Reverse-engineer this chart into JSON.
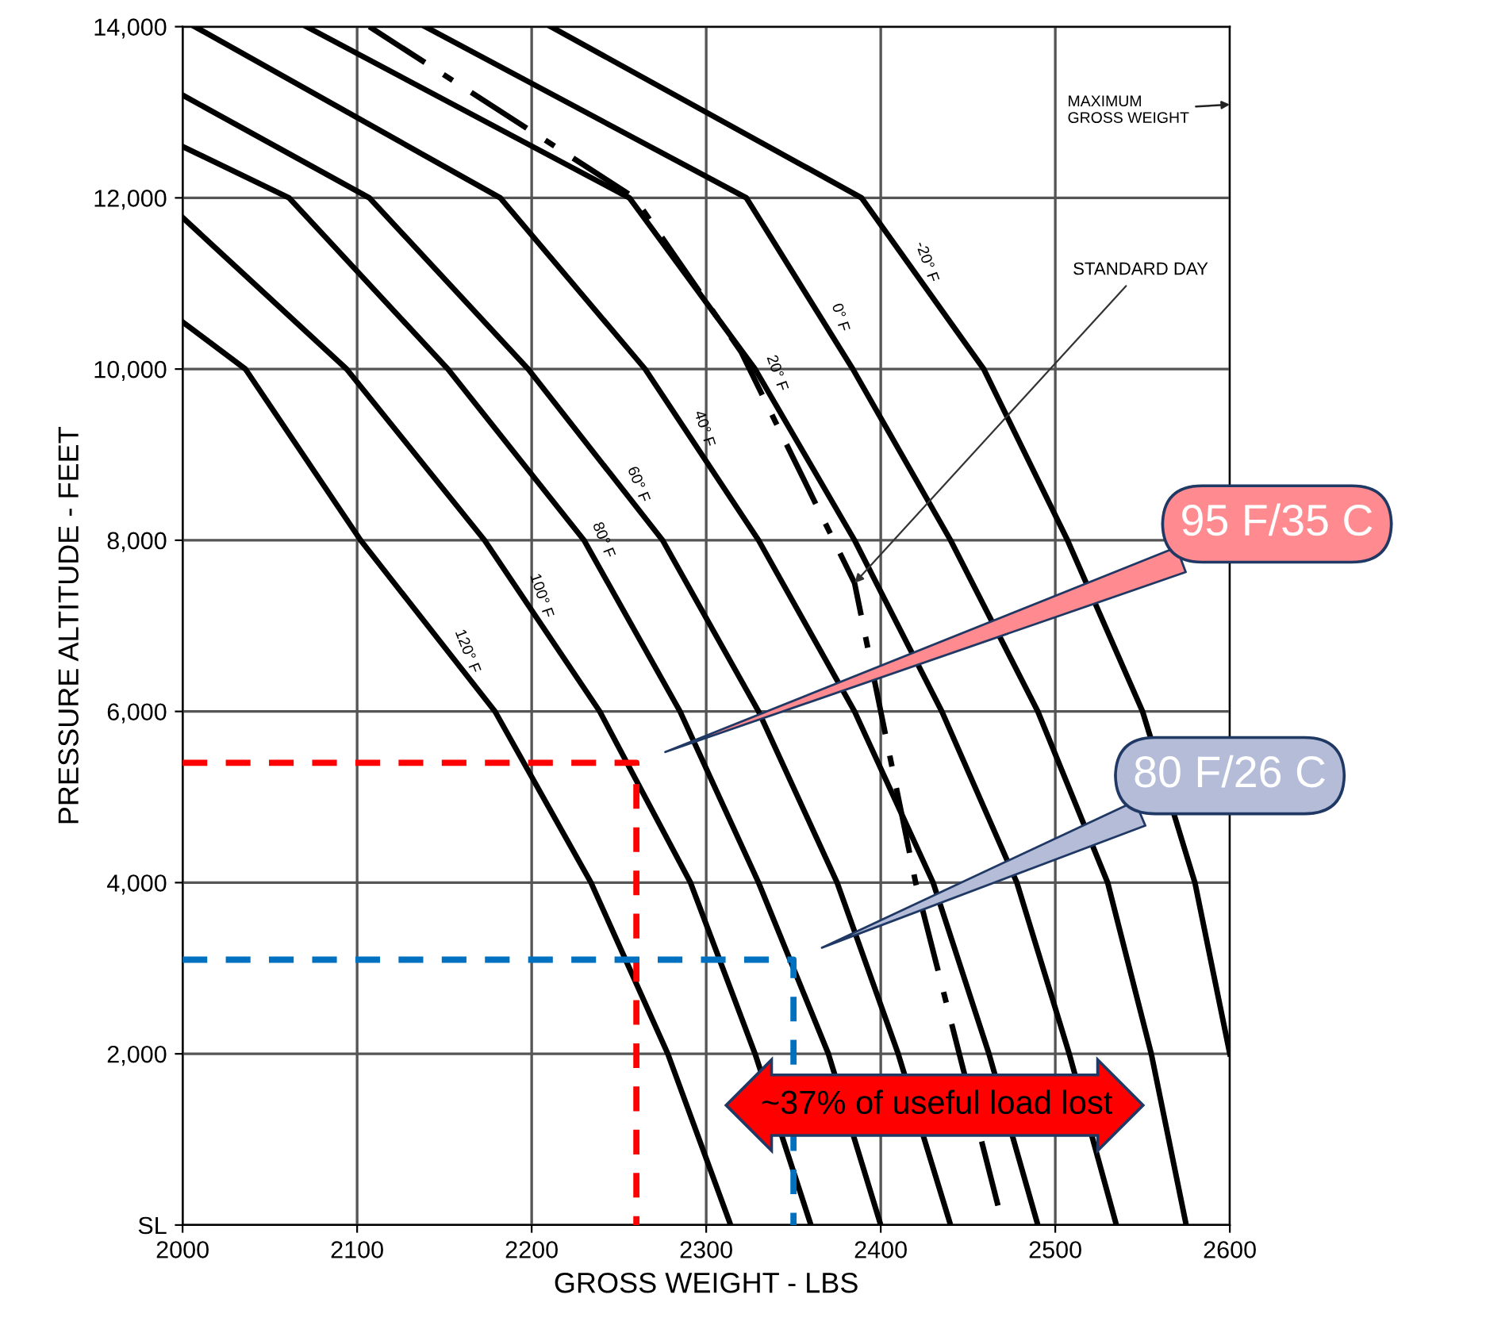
{
  "chart_data": {
    "type": "line",
    "xlabel": "GROSS WEIGHT - LBS",
    "ylabel": "PRESSURE ALTITUDE - FEET",
    "xlim": [
      2000,
      2600
    ],
    "xticks": [
      2000,
      2100,
      2200,
      2300,
      2400,
      2500,
      2600
    ],
    "ylim": [
      0,
      14000
    ],
    "yticks": [
      {
        "value": 0,
        "label": "SL"
      },
      {
        "value": 2000,
        "label": "2,000"
      },
      {
        "value": 4000,
        "label": "4,000"
      },
      {
        "value": 6000,
        "label": "6,000"
      },
      {
        "value": 8000,
        "label": "8,000"
      },
      {
        "value": 10000,
        "label": "10,000"
      },
      {
        "value": 12000,
        "label": "12,000"
      },
      {
        "value": 14000,
        "label": "14,000"
      }
    ],
    "grid": true,
    "legend": false,
    "marker": "none",
    "series": [
      {
        "name": "120° F",
        "color": "#000000",
        "line_style": "solid",
        "x": [
          2000,
          2036,
          2102,
          2179,
          2234,
          2278,
          2314
        ],
        "values": [
          10550,
          10000,
          8000,
          6000,
          4000,
          2000,
          0
        ]
      },
      {
        "name": "100° F",
        "color": "#000000",
        "line_style": "solid",
        "x": [
          2000,
          2094,
          2173,
          2239,
          2291,
          2328,
          2360
        ],
        "values": [
          11770,
          10000,
          8000,
          6000,
          4000,
          2000,
          0
        ]
      },
      {
        "name": "80° F",
        "color": "#000000",
        "line_style": "solid",
        "x": [
          2000,
          2061,
          2152,
          2230,
          2285,
          2330,
          2370,
          2400
        ],
        "values": [
          12600,
          12000,
          10000,
          8000,
          6000,
          4000,
          2000,
          0
        ]
      },
      {
        "name": "60° F",
        "color": "#000000",
        "line_style": "solid",
        "x": [
          2000,
          2107,
          2198,
          2275,
          2330,
          2375,
          2410,
          2440
        ],
        "values": [
          13200,
          12000,
          10000,
          8000,
          6000,
          4000,
          2000,
          0
        ]
      },
      {
        "name": "40° F",
        "color": "#000000",
        "line_style": "solid",
        "x": [
          2007,
          2182,
          2265,
          2330,
          2385,
          2430,
          2462,
          2490
        ],
        "values": [
          14000,
          12000,
          10000,
          8000,
          6000,
          4000,
          2000,
          0
        ]
      },
      {
        "name": "20° F",
        "color": "#000000",
        "line_style": "solid",
        "x": [
          2071,
          2256,
          2328,
          2385,
          2435,
          2478,
          2508,
          2535
        ],
        "values": [
          14000,
          12000,
          10000,
          8000,
          6000,
          4000,
          2000,
          0
        ]
      },
      {
        "name": "0° F",
        "color": "#000000",
        "line_style": "solid",
        "x": [
          2139,
          2323,
          2384,
          2440,
          2490,
          2530,
          2555,
          2575
        ],
        "values": [
          14000,
          12000,
          10000,
          8000,
          6000,
          4000,
          2000,
          0
        ]
      },
      {
        "name": "-20° F",
        "color": "#000000",
        "line_style": "solid",
        "x": [
          2211,
          2389,
          2459,
          2507,
          2550,
          2580,
          2600
        ],
        "values": [
          14000,
          12000,
          10000,
          8000,
          6000,
          4000,
          2000
        ]
      },
      {
        "name": "STANDARD DAY",
        "color": "#000000",
        "line_style": "dashdot",
        "x": [
          2107,
          2259,
          2320,
          2373,
          2385,
          2400,
          2420,
          2445,
          2470
        ],
        "values": [
          14000,
          12000,
          10200,
          8000,
          7500,
          6000,
          4000,
          2000,
          0
        ]
      },
      {
        "color": "#ff0000",
        "line_style": "dashed",
        "x": [
          2000,
          2260,
          2260
        ],
        "values": [
          5400,
          5400,
          0
        ]
      },
      {
        "color": "#0070c0",
        "line_style": "dashed",
        "x": [
          2000,
          2350,
          2350
        ],
        "values": [
          3100,
          3100,
          0
        ]
      }
    ],
    "annotations": [
      "MAXIMUM\nGROSS WEIGHT",
      "95 F/35 C",
      "80 F/26 C",
      "~37% of useful load lost"
    ]
  }
}
